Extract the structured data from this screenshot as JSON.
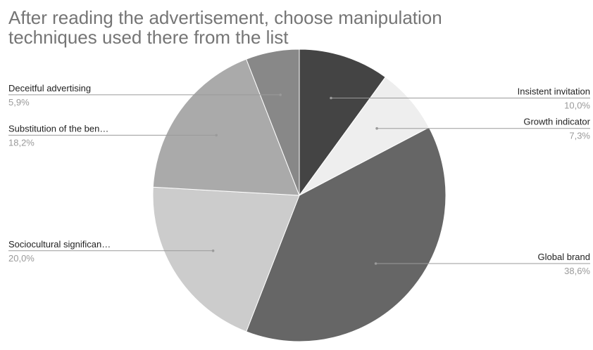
{
  "chart_data": {
    "type": "pie",
    "title": [
      "After reading the advertisement, choose manipulation",
      "techniques used there from the list"
    ],
    "start_angle_deg": 0,
    "direction": "clockwise",
    "slices": [
      {
        "label": "Insistent invitation",
        "pct_label": "10,0%",
        "value": 10.0,
        "color": "#444444",
        "label_side": "right"
      },
      {
        "label": "Growth indicator",
        "pct_label": "7,3%",
        "value": 7.3,
        "color": "#eeeeee",
        "label_side": "right"
      },
      {
        "label": "Global brand",
        "pct_label": "38,6%",
        "value": 38.6,
        "color": "#666666",
        "label_side": "right"
      },
      {
        "label": "Sociocultural significan…",
        "pct_label": "20,0%",
        "value": 20.0,
        "color": "#cccccc",
        "label_side": "left"
      },
      {
        "label": "Substitution of the ben…",
        "pct_label": "18,2%",
        "value": 18.2,
        "color": "#aaaaaa",
        "label_side": "left"
      },
      {
        "label": "Deceitful advertising",
        "pct_label": "5,9%",
        "value": 5.9,
        "color": "#888888",
        "label_side": "left"
      }
    ]
  }
}
